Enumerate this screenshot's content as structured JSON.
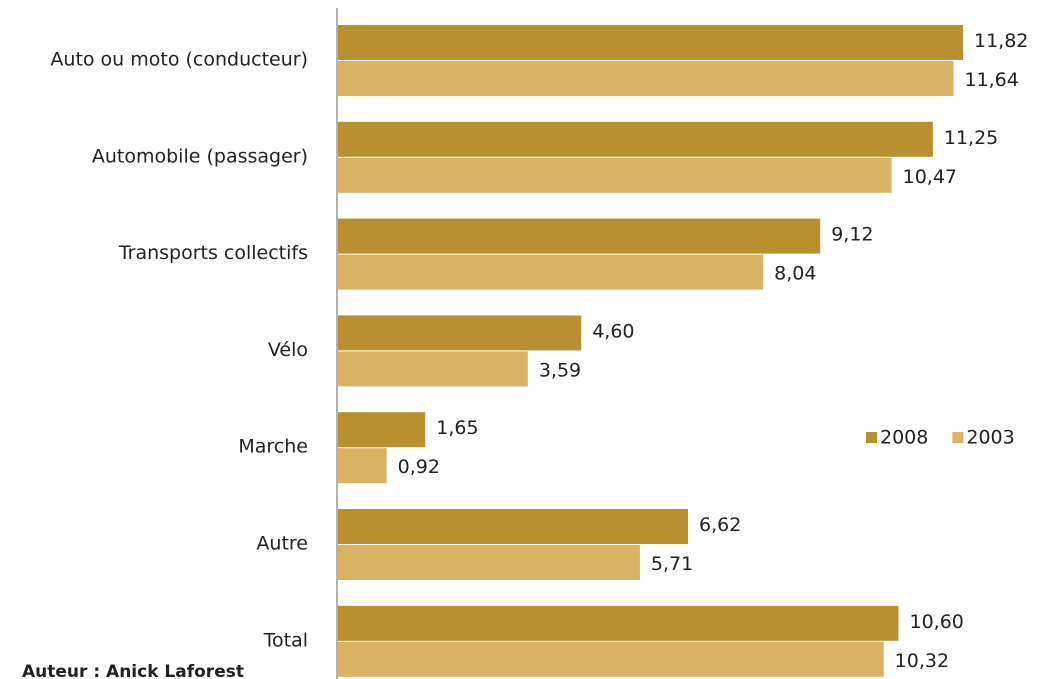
{
  "chart_data": {
    "type": "bar",
    "orientation": "horizontal",
    "categories": [
      "Auto ou moto (conducteur)",
      "Automobile (passager)",
      "Transports collectifs",
      "Vélo",
      "Marche",
      "Autre",
      "Total"
    ],
    "series": [
      {
        "name": "2008",
        "color": "#b8902f",
        "values": [
          11.82,
          11.25,
          9.12,
          4.6,
          1.65,
          6.62,
          10.6
        ],
        "value_labels": [
          "11,82",
          "11,25",
          "9,12",
          "4,60",
          "1,65",
          "6,62",
          "10,60"
        ]
      },
      {
        "name": "2003",
        "color": "#dab263",
        "values": [
          11.64,
          10.47,
          8.04,
          3.59,
          0.92,
          5.71,
          10.32
        ],
        "value_labels": [
          "11,64",
          "10,47",
          "8,04",
          "3,59",
          "0,92",
          "5,71",
          "10,32"
        ]
      }
    ],
    "legend": "right",
    "source": "Auteur : Anick Laforest"
  }
}
